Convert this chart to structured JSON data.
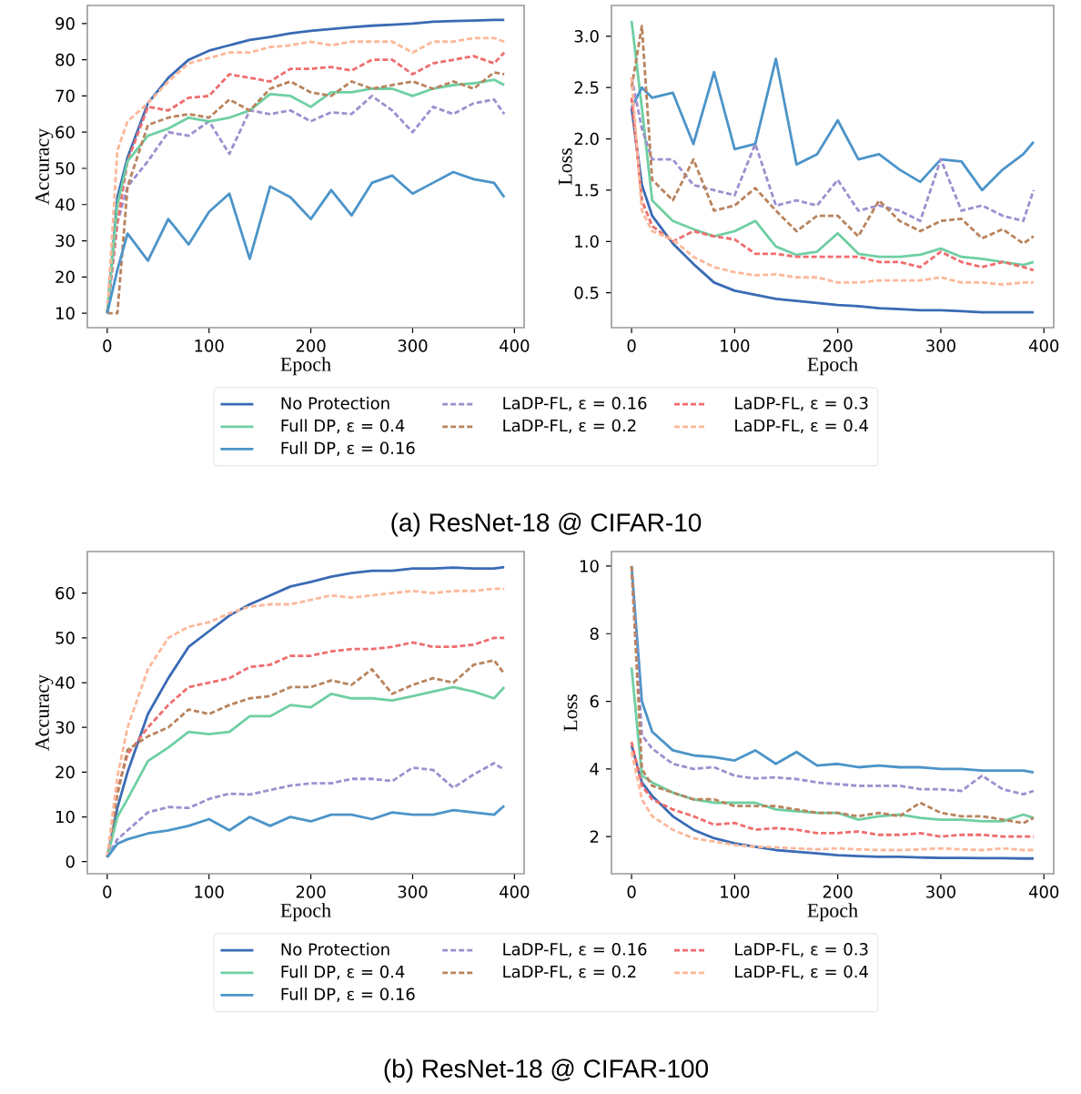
{
  "chart_data": [
    {
      "type": "line",
      "xlabel": "Epoch",
      "ylabel": "Accuracy",
      "legend": "bottom",
      "annotations": [
        "(a) ResNet-18 @ CIFAR-10"
      ],
      "x": [
        0,
        10,
        20,
        40,
        60,
        80,
        100,
        120,
        140,
        160,
        180,
        200,
        220,
        240,
        260,
        280,
        300,
        320,
        340,
        360,
        380,
        390
      ],
      "xlim": [
        -19.5,
        409.5
      ],
      "xticks": [
        0,
        100,
        200,
        300,
        400
      ],
      "ylim": [
        6,
        95
      ],
      "yticks": [
        10,
        20,
        30,
        40,
        50,
        60,
        70,
        80,
        90
      ],
      "series": [
        {
          "name": "No Protection",
          "color": "#3a6bb5",
          "line_style": "solid",
          "values": [
            10,
            42,
            53,
            68,
            75,
            80,
            82.5,
            84,
            85.5,
            86.3,
            87.3,
            88,
            88.5,
            89,
            89.4,
            89.7,
            90,
            90.5,
            90.7,
            90.8,
            91,
            91
          ]
        },
        {
          "name": "Full DP, ε = 0.4",
          "color": "#6fcfa3",
          "line_style": "solid",
          "values": [
            10,
            40,
            52,
            59,
            61,
            64,
            63,
            64,
            66,
            70.5,
            70,
            67,
            71,
            71,
            72,
            72,
            70,
            72,
            73,
            73.5,
            74.5,
            73
          ]
        },
        {
          "name": "Full DP, ε = 0.16",
          "color": "#4c94c9",
          "line_style": "solid",
          "values": [
            10,
            22,
            32,
            24.5,
            36,
            29,
            38,
            43,
            25,
            45,
            42,
            36,
            44,
            37,
            46,
            48,
            43,
            46,
            49,
            47,
            46,
            42
          ]
        },
        {
          "name": "LaDP-FL, ε = 0.16",
          "color": "#9d8fd0",
          "line_style": "dashed",
          "values": [
            10,
            35,
            45,
            52,
            60,
            59,
            63,
            54,
            66,
            65,
            66,
            63,
            65.5,
            65,
            70,
            66,
            60,
            67,
            65,
            68,
            69,
            65
          ]
        },
        {
          "name": "LaDP-FL, ε = 0.2",
          "color": "#b9835d",
          "line_style": "dashed",
          "values": [
            10,
            10,
            45,
            62,
            64,
            65,
            64,
            69,
            66,
            72,
            74,
            71,
            70,
            74,
            72,
            73,
            74,
            72,
            74,
            72,
            76.5,
            76
          ]
        },
        {
          "name": "LaDP-FL, ε = 0.3",
          "color": "#ef6d6d",
          "line_style": "dashed",
          "values": [
            10,
            35,
            52,
            67,
            66,
            69.5,
            70,
            76,
            75,
            74,
            77.5,
            77.5,
            78,
            77,
            80,
            80,
            76,
            79,
            80,
            81,
            79,
            82
          ]
        },
        {
          "name": "LaDP-FL, ε = 0.4",
          "color": "#fcb89a",
          "line_style": "dashed",
          "values": [
            10,
            55,
            63,
            68,
            74,
            79,
            80.5,
            82,
            82,
            83.5,
            84,
            85,
            84,
            85,
            85,
            85,
            82,
            85,
            85,
            86,
            86,
            85
          ]
        }
      ]
    },
    {
      "type": "line",
      "xlabel": "Epoch",
      "ylabel": "Loss",
      "x": [
        0,
        10,
        20,
        40,
        60,
        80,
        100,
        120,
        140,
        160,
        180,
        200,
        220,
        240,
        260,
        280,
        300,
        320,
        340,
        360,
        380,
        390
      ],
      "xlim": [
        -19.5,
        409.5
      ],
      "xticks": [
        0,
        100,
        200,
        300,
        400
      ],
      "ylim": [
        0.16,
        3.3
      ],
      "yticks": [
        0.5,
        {
          "value": 1,
          "label": "1.0"
        },
        1.5,
        {
          "value": 2,
          "label": "2.0"
        },
        2.5,
        {
          "value": 3,
          "label": "3.0"
        }
      ],
      "series": [
        {
          "color": "#3a6bb5",
          "line_style": "solid",
          "values": [
            2.3,
            1.55,
            1.25,
            0.98,
            0.78,
            0.6,
            0.52,
            0.48,
            0.44,
            0.42,
            0.4,
            0.38,
            0.37,
            0.35,
            0.34,
            0.33,
            0.33,
            0.32,
            0.31,
            0.31,
            0.31,
            0.31
          ]
        },
        {
          "color": "#6fcfa3",
          "line_style": "solid",
          "values": [
            3.15,
            2.3,
            1.4,
            1.2,
            1.12,
            1.05,
            1.1,
            1.2,
            0.95,
            0.87,
            0.9,
            1.08,
            0.88,
            0.85,
            0.85,
            0.87,
            0.93,
            0.85,
            0.83,
            0.8,
            0.77,
            0.8
          ]
        },
        {
          "color": "#4c94c9",
          "line_style": "solid",
          "values": [
            2.3,
            2.5,
            2.4,
            2.45,
            1.95,
            2.65,
            1.9,
            1.95,
            2.78,
            1.75,
            1.85,
            2.18,
            1.8,
            1.85,
            1.7,
            1.58,
            1.8,
            1.78,
            1.5,
            1.7,
            1.85,
            1.97
          ]
        },
        {
          "color": "#9d8fd0",
          "line_style": "dashed",
          "values": [
            2.6,
            2.1,
            1.8,
            1.8,
            1.55,
            1.5,
            1.45,
            1.95,
            1.35,
            1.4,
            1.35,
            1.6,
            1.3,
            1.35,
            1.3,
            1.2,
            1.8,
            1.3,
            1.35,
            1.25,
            1.2,
            1.5
          ]
        },
        {
          "color": "#b9835d",
          "line_style": "dashed",
          "values": [
            2.5,
            3.1,
            1.6,
            1.4,
            1.8,
            1.3,
            1.35,
            1.52,
            1.3,
            1.1,
            1.25,
            1.25,
            1.05,
            1.4,
            1.2,
            1.1,
            1.2,
            1.22,
            1.03,
            1.12,
            0.98,
            1.05
          ]
        },
        {
          "color": "#ef6d6d",
          "line_style": "dashed",
          "values": [
            2.4,
            1.4,
            1.15,
            1.0,
            1.1,
            1.05,
            1.02,
            0.88,
            0.88,
            0.85,
            0.85,
            0.85,
            0.85,
            0.8,
            0.8,
            0.75,
            0.9,
            0.8,
            0.75,
            0.8,
            0.75,
            0.72
          ]
        },
        {
          "color": "#fcb89a",
          "line_style": "dashed",
          "values": [
            2.6,
            1.3,
            1.1,
            1.02,
            0.85,
            0.75,
            0.7,
            0.67,
            0.68,
            0.65,
            0.65,
            0.6,
            0.6,
            0.62,
            0.62,
            0.62,
            0.65,
            0.6,
            0.6,
            0.58,
            0.6,
            0.6
          ]
        }
      ]
    },
    {
      "type": "line",
      "xlabel": "Epoch",
      "ylabel": "Accuracy",
      "legend": "bottom",
      "annotations": [
        "(b) ResNet-18 @ CIFAR-100"
      ],
      "x": [
        0,
        10,
        20,
        40,
        60,
        80,
        100,
        120,
        140,
        160,
        180,
        200,
        220,
        240,
        260,
        280,
        300,
        320,
        340,
        360,
        380,
        390
      ],
      "xlim": [
        -19.5,
        409.5
      ],
      "xticks": [
        0,
        100,
        200,
        300,
        400
      ],
      "ylim": [
        -2.7,
        69.3
      ],
      "yticks": [
        0,
        10,
        20,
        30,
        40,
        50,
        60
      ],
      "series": [
        {
          "name": "No Protection",
          "color": "#3a6bb5",
          "line_style": "solid",
          "values": [
            1,
            12,
            20,
            33,
            41,
            48,
            51.5,
            55,
            57.5,
            59.5,
            61.5,
            62.5,
            63.7,
            64.5,
            65,
            65,
            65.5,
            65.5,
            65.7,
            65.5,
            65.5,
            65.8
          ]
        },
        {
          "name": "Full DP, ε = 0.4",
          "color": "#6fcfa3",
          "line_style": "solid",
          "values": [
            1,
            10,
            14,
            22.5,
            25.5,
            29,
            28.5,
            29,
            32.5,
            32.5,
            35,
            34.5,
            37.5,
            36.5,
            36.5,
            36,
            37,
            38,
            39,
            38,
            36.5,
            39
          ]
        },
        {
          "name": "Full DP, ε = 0.16",
          "color": "#4c94c9",
          "line_style": "solid",
          "values": [
            1,
            4,
            5,
            6.3,
            7,
            8,
            9.5,
            7,
            10,
            8,
            10,
            9,
            10.5,
            10.5,
            9.5,
            11,
            10.5,
            10.5,
            11.5,
            11,
            10.5,
            12.5
          ]
        },
        {
          "name": "LaDP-FL, ε = 0.16",
          "color": "#9d8fd0",
          "line_style": "dashed",
          "values": [
            1,
            5,
            7,
            11,
            12.2,
            12,
            14,
            15.2,
            15,
            16,
            17,
            17.5,
            17.5,
            18.5,
            18.5,
            18,
            21,
            20.5,
            16.5,
            19.5,
            22,
            20.5
          ]
        },
        {
          "name": "LaDP-FL, ε = 0.2",
          "color": "#b9835d",
          "line_style": "dashed",
          "values": [
            1,
            15,
            25,
            28,
            30,
            34,
            33,
            35,
            36.5,
            37,
            39,
            39,
            40.5,
            39.5,
            43,
            37.5,
            39.5,
            41,
            40,
            44,
            45,
            42
          ]
        },
        {
          "name": "LaDP-FL, ε = 0.3",
          "color": "#ef6d6d",
          "line_style": "dashed",
          "values": [
            1,
            16,
            24,
            30,
            35,
            39,
            40,
            41,
            43.5,
            44,
            46,
            46,
            47,
            47.5,
            47.5,
            48,
            49,
            48,
            48,
            48.5,
            50,
            50
          ]
        },
        {
          "name": "LaDP-FL, ε = 0.4",
          "color": "#fcb89a",
          "line_style": "dashed",
          "values": [
            1,
            19,
            30,
            43,
            50,
            52.5,
            53.5,
            55.5,
            57,
            57.5,
            57.5,
            58.5,
            59.5,
            59,
            59.5,
            60,
            60.5,
            60,
            60.5,
            60.5,
            61,
            61
          ]
        }
      ]
    },
    {
      "type": "line",
      "xlabel": "Epoch",
      "ylabel": "Loss",
      "x": [
        0,
        10,
        20,
        40,
        60,
        80,
        100,
        120,
        140,
        160,
        180,
        200,
        220,
        240,
        260,
        280,
        300,
        320,
        340,
        360,
        380,
        390
      ],
      "xlim": [
        -19.5,
        409.5
      ],
      "xticks": [
        0,
        100,
        200,
        300,
        400
      ],
      "ylim": [
        0.9,
        10.43
      ],
      "yticks": [
        2,
        4,
        6,
        8,
        10
      ],
      "series": [
        {
          "color": "#3a6bb5",
          "line_style": "solid",
          "values": [
            4.7,
            3.6,
            3.2,
            2.6,
            2.2,
            1.95,
            1.8,
            1.7,
            1.6,
            1.55,
            1.5,
            1.45,
            1.42,
            1.4,
            1.4,
            1.38,
            1.37,
            1.37,
            1.36,
            1.36,
            1.35,
            1.35
          ]
        },
        {
          "color": "#6fcfa3",
          "line_style": "solid",
          "values": [
            7.0,
            3.8,
            3.6,
            3.3,
            3.1,
            3.0,
            3.0,
            3.0,
            2.8,
            2.75,
            2.7,
            2.7,
            2.5,
            2.6,
            2.65,
            2.55,
            2.5,
            2.5,
            2.45,
            2.45,
            2.65,
            2.55
          ]
        },
        {
          "color": "#4c94c9",
          "line_style": "solid",
          "values": [
            10,
            6,
            5.1,
            4.55,
            4.4,
            4.35,
            4.25,
            4.55,
            4.15,
            4.5,
            4.1,
            4.15,
            4.05,
            4.1,
            4.05,
            4.05,
            4.0,
            4.0,
            3.95,
            3.95,
            3.95,
            3.9
          ]
        },
        {
          "color": "#9d8fd0",
          "line_style": "dashed",
          "values": [
            10,
            5.0,
            4.6,
            4.15,
            4.0,
            4.05,
            3.8,
            3.72,
            3.75,
            3.7,
            3.6,
            3.55,
            3.5,
            3.5,
            3.5,
            3.4,
            3.4,
            3.35,
            3.8,
            3.4,
            3.25,
            3.35
          ]
        },
        {
          "color": "#b9835d",
          "line_style": "dashed",
          "values": [
            10,
            4.0,
            3.5,
            3.3,
            3.1,
            3.1,
            2.9,
            2.9,
            2.9,
            2.8,
            2.7,
            2.7,
            2.6,
            2.7,
            2.6,
            3.0,
            2.7,
            2.6,
            2.6,
            2.5,
            2.4,
            2.55
          ]
        },
        {
          "color": "#ef6d6d",
          "line_style": "dashed",
          "values": [
            4.8,
            3.5,
            3.1,
            2.8,
            2.6,
            2.35,
            2.4,
            2.2,
            2.25,
            2.2,
            2.1,
            2.1,
            2.15,
            2.05,
            2.05,
            2.1,
            2.0,
            2.05,
            2.05,
            2.0,
            2.0,
            2.0
          ]
        },
        {
          "color": "#fcb89a",
          "line_style": "dashed",
          "values": [
            4.5,
            3.1,
            2.6,
            2.2,
            1.95,
            1.85,
            1.75,
            1.7,
            1.68,
            1.65,
            1.62,
            1.65,
            1.62,
            1.6,
            1.6,
            1.62,
            1.65,
            1.62,
            1.6,
            1.65,
            1.6,
            1.6
          ]
        }
      ]
    }
  ]
}
